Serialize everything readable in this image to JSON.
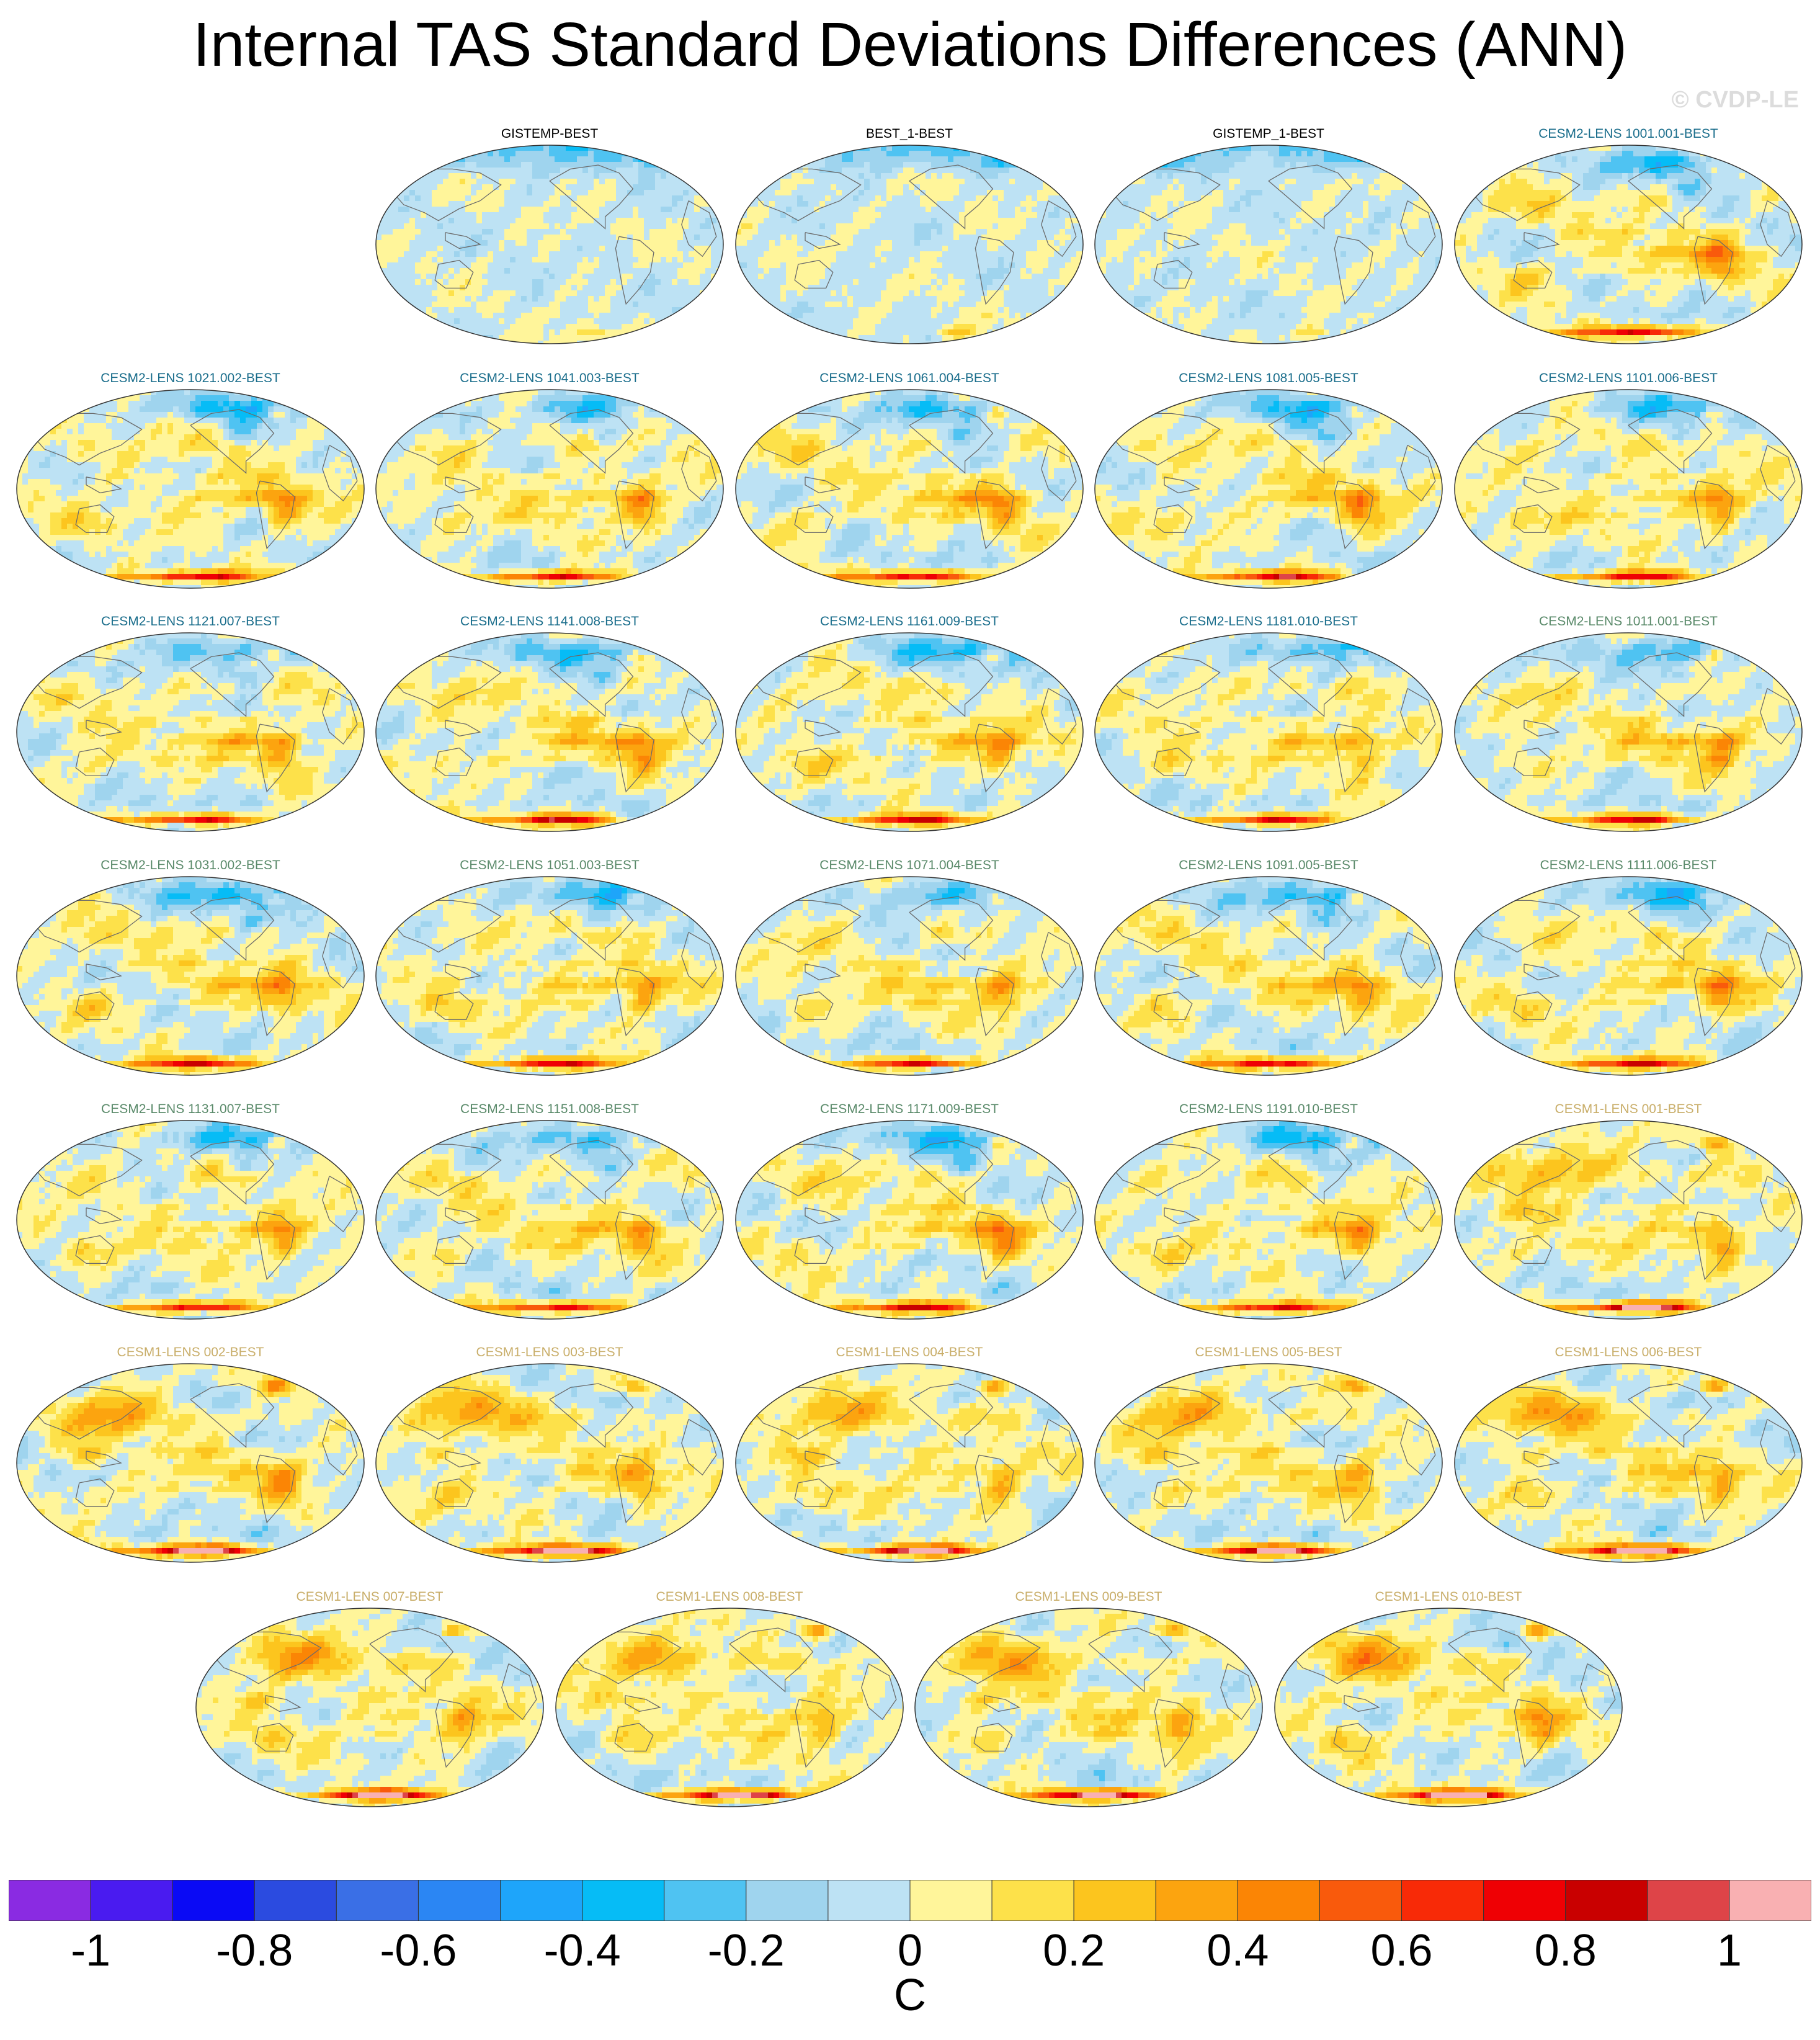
{
  "figure": {
    "title": "Internal TAS Standard Deviations Differences (ANN)",
    "watermark": "© CVDP-LE",
    "units": "C"
  },
  "colors": {
    "ocean_land_neutral_blue": "#b9dff3",
    "title_black": "#000000",
    "title_cesm2_first": "#1b6e8c",
    "title_cesm2_second": "#5a8a6a",
    "title_cesm1": "#c9ae6a"
  },
  "chart_data": {
    "type": "heatmap",
    "description_type": "map-panel-grid",
    "variable": "TAS",
    "season": "ANN",
    "projection": "global map, Pacific-centred",
    "colorbar": {
      "tick_labels": [
        "-1",
        "-0.8",
        "-0.6",
        "-0.4",
        "-0.2",
        "0",
        "0.2",
        "0.4",
        "0.6",
        "0.8",
        "1"
      ],
      "ticks": [
        -1,
        -0.8,
        -0.6,
        -0.4,
        -0.2,
        0,
        0.2,
        0.4,
        0.6,
        0.8,
        1
      ],
      "range": [
        -1.1,
        1.1
      ],
      "bin_width": 0.1,
      "colors": [
        "#8a2be2",
        "#4a1bf0",
        "#0a0af5",
        "#2b4be0",
        "#3a6fe6",
        "#2b86f3",
        "#1ea5fa",
        "#06bcf6",
        "#4fc3f2",
        "#9fd4ee",
        "#bde2f4",
        "#fff59a",
        "#fde14a",
        "#fcc51e",
        "#fca40f",
        "#fb8505",
        "#f95a0c",
        "#f82a07",
        "#ef0004",
        "#c90000",
        "#de4448",
        "#f9b0b2"
      ]
    },
    "panels": [
      {
        "title": "GISTEMP-BEST",
        "group": "obs"
      },
      {
        "title": "BEST_1-BEST",
        "group": "obs"
      },
      {
        "title": "GISTEMP_1-BEST",
        "group": "obs"
      },
      {
        "title": "CESM2-LENS 1001.001-BEST",
        "group": "cesm2a"
      },
      {
        "title": "CESM2-LENS 1021.002-BEST",
        "group": "cesm2a"
      },
      {
        "title": "CESM2-LENS 1041.003-BEST",
        "group": "cesm2a"
      },
      {
        "title": "CESM2-LENS 1061.004-BEST",
        "group": "cesm2a"
      },
      {
        "title": "CESM2-LENS 1081.005-BEST",
        "group": "cesm2a"
      },
      {
        "title": "CESM2-LENS 1101.006-BEST",
        "group": "cesm2a"
      },
      {
        "title": "CESM2-LENS 1121.007-BEST",
        "group": "cesm2a"
      },
      {
        "title": "CESM2-LENS 1141.008-BEST",
        "group": "cesm2a"
      },
      {
        "title": "CESM2-LENS 1161.009-BEST",
        "group": "cesm2a"
      },
      {
        "title": "CESM2-LENS 1181.010-BEST",
        "group": "cesm2a"
      },
      {
        "title": "CESM2-LENS 1011.001-BEST",
        "group": "cesm2b"
      },
      {
        "title": "CESM2-LENS 1031.002-BEST",
        "group": "cesm2b"
      },
      {
        "title": "CESM2-LENS 1051.003-BEST",
        "group": "cesm2b"
      },
      {
        "title": "CESM2-LENS 1071.004-BEST",
        "group": "cesm2b"
      },
      {
        "title": "CESM2-LENS 1091.005-BEST",
        "group": "cesm2b"
      },
      {
        "title": "CESM2-LENS 1111.006-BEST",
        "group": "cesm2b"
      },
      {
        "title": "CESM2-LENS 1131.007-BEST",
        "group": "cesm2b"
      },
      {
        "title": "CESM2-LENS 1151.008-BEST",
        "group": "cesm2b"
      },
      {
        "title": "CESM2-LENS 1171.009-BEST",
        "group": "cesm2b"
      },
      {
        "title": "CESM2-LENS 1191.010-BEST",
        "group": "cesm2b"
      },
      {
        "title": "CESM1-LENS 001-BEST",
        "group": "cesm1"
      },
      {
        "title": "CESM1-LENS 002-BEST",
        "group": "cesm1"
      },
      {
        "title": "CESM1-LENS 003-BEST",
        "group": "cesm1"
      },
      {
        "title": "CESM1-LENS 004-BEST",
        "group": "cesm1"
      },
      {
        "title": "CESM1-LENS 005-BEST",
        "group": "cesm1"
      },
      {
        "title": "CESM1-LENS 006-BEST",
        "group": "cesm1"
      },
      {
        "title": "CESM1-LENS 007-BEST",
        "group": "cesm1"
      },
      {
        "title": "CESM1-LENS 008-BEST",
        "group": "cesm1"
      },
      {
        "title": "CESM1-LENS 009-BEST",
        "group": "cesm1"
      },
      {
        "title": "CESM1-LENS 010-BEST",
        "group": "cesm1"
      }
    ]
  }
}
